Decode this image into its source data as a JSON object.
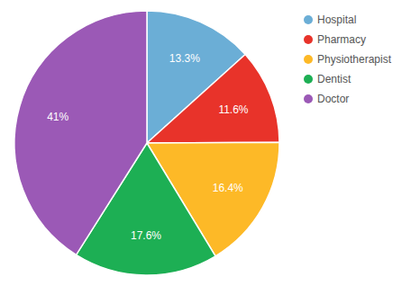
{
  "chart_data": {
    "type": "pie",
    "categories": [
      "Hospital",
      "Pharmacy",
      "Physiotherapist",
      "Dentist",
      "Doctor"
    ],
    "values": [
      13.3,
      11.6,
      16.4,
      17.6,
      41.0
    ],
    "value_labels": [
      "13.3%",
      "11.6%",
      "16.4%",
      "17.6%",
      "41%"
    ],
    "colors": [
      "#6BAED6",
      "#E8332A",
      "#FDB927",
      "#1DAF54",
      "#9B59B6"
    ],
    "data_labels": true,
    "legend": "right"
  }
}
